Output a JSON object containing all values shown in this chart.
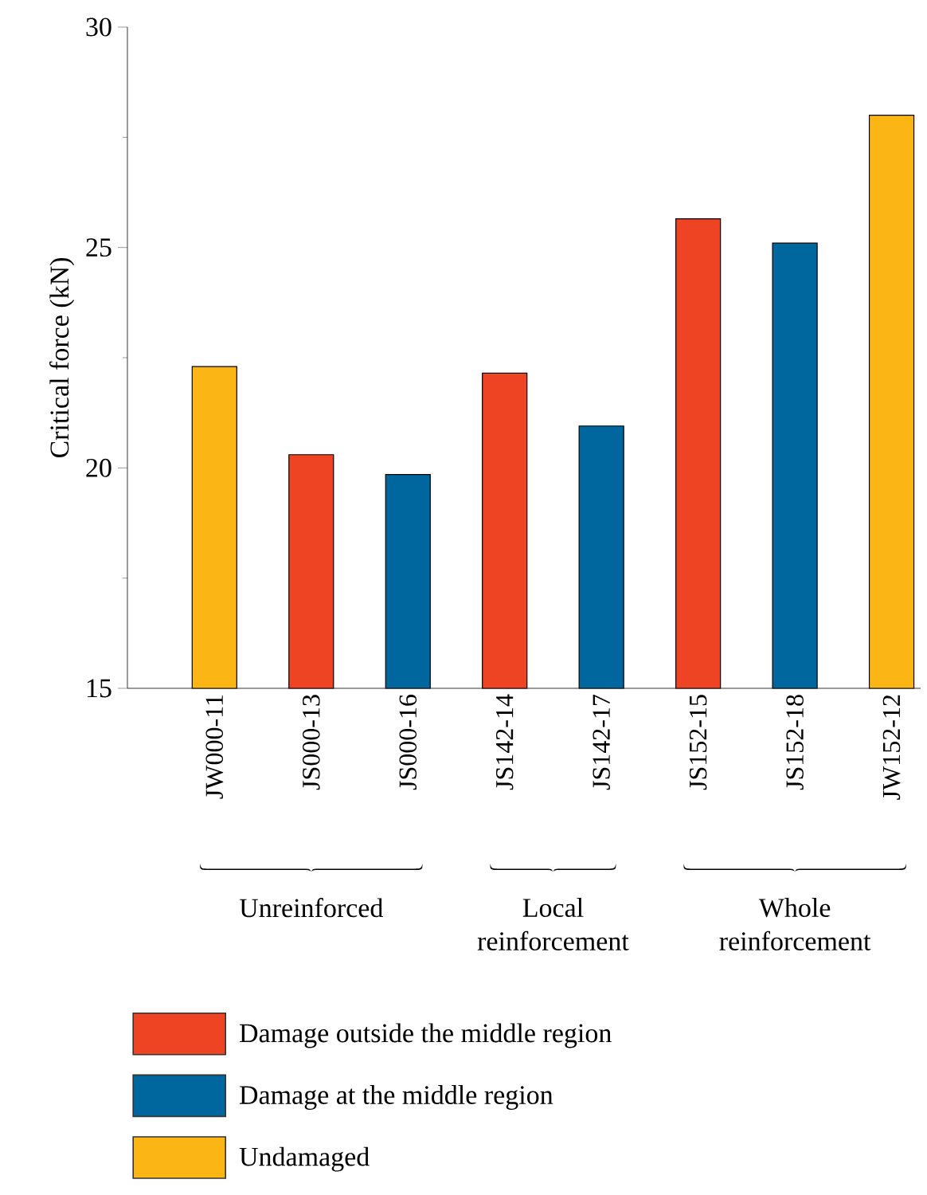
{
  "chart_data": {
    "type": "bar",
    "ylabel": "Critical force (kN)",
    "categories": [
      "JW000-11",
      "JS000-13",
      "JS000-16",
      "JS142-14",
      "JS142-17",
      "JS152-15",
      "JS152-18",
      "JW152-12"
    ],
    "series": [
      {
        "name": "Damage outside the middle region",
        "color": "#ee4423",
        "values": [
          null,
          20.3,
          null,
          22.15,
          null,
          25.65,
          null,
          null
        ]
      },
      {
        "name": "Damage at the middle region",
        "color": "#00679e",
        "values": [
          null,
          null,
          19.85,
          null,
          20.95,
          null,
          25.1,
          null
        ]
      },
      {
        "name": "Undamaged",
        "color": "#fbb515",
        "values": [
          22.3,
          null,
          null,
          null,
          null,
          null,
          null,
          28.0
        ]
      }
    ],
    "ylim": [
      15,
      30
    ],
    "yticks": [
      15,
      20,
      25,
      30
    ],
    "annotations": [
      "Unreinforced",
      "Local reinforcement",
      "Whole reinforcement"
    ],
    "legend": "bottom"
  }
}
